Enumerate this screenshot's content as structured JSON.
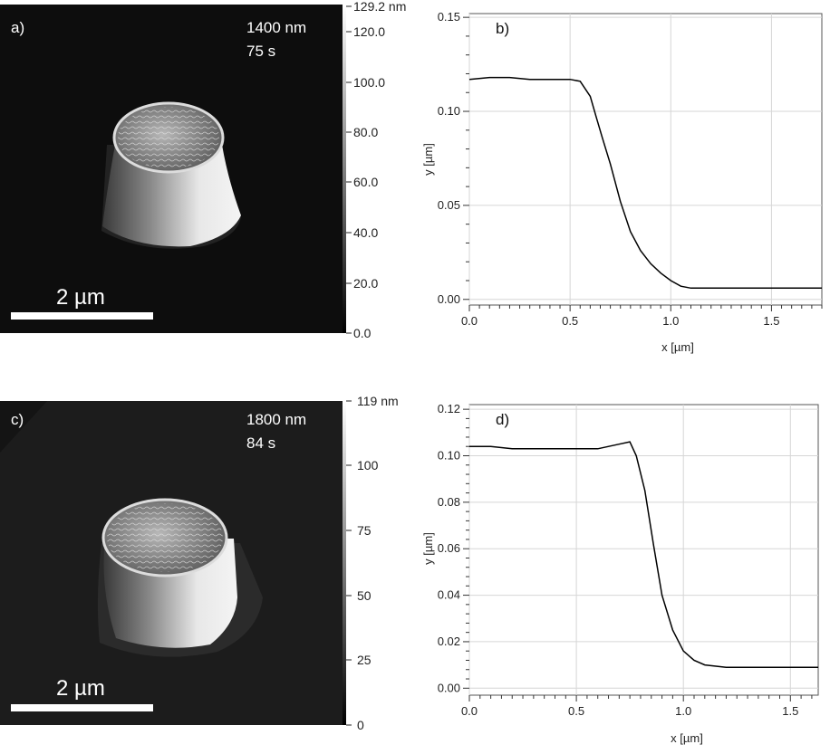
{
  "panels": {
    "a": {
      "label": "a)",
      "info_line1": "1400 nm",
      "info_line2": "75 s",
      "scale_bar": "2 µm",
      "colorbar": {
        "max_label": "129.2 nm",
        "ticks": [
          "120.0",
          "100.0",
          "80.0",
          "60.0",
          "40.0",
          "20.0",
          "0.0"
        ]
      }
    },
    "c": {
      "label": "c)",
      "info_line1": "1800 nm",
      "info_line2": "84 s",
      "scale_bar": "2 µm",
      "colorbar": {
        "max_label": "119 nm",
        "ticks": [
          "100",
          "75",
          "50",
          "25",
          "0"
        ]
      }
    }
  },
  "chart_data": [
    {
      "type": "line",
      "panel_label": "b)",
      "xlabel": "x [µm]",
      "ylabel": "y [µm]",
      "xlim": [
        0,
        1.75
      ],
      "ylim": [
        -0.003,
        0.152
      ],
      "xticks": [
        0.0,
        0.5,
        1.0,
        1.5
      ],
      "xtick_labels": [
        "0.0",
        "0.5",
        "1.0",
        "1.5"
      ],
      "yticks": [
        0.0,
        0.05,
        0.1,
        0.15
      ],
      "ytick_labels": [
        "0.00",
        "0.05",
        "0.10",
        "0.15"
      ],
      "grid": true,
      "series": [
        {
          "x": [
            0.0,
            0.1,
            0.2,
            0.3,
            0.4,
            0.5,
            0.55,
            0.6,
            0.63,
            0.66,
            0.7,
            0.75,
            0.8,
            0.85,
            0.9,
            0.95,
            1.0,
            1.05,
            1.1,
            1.2,
            1.3,
            1.4,
            1.5,
            1.6,
            1.75
          ],
          "y": [
            0.117,
            0.118,
            0.118,
            0.117,
            0.117,
            0.117,
            0.116,
            0.108,
            0.097,
            0.086,
            0.072,
            0.052,
            0.036,
            0.026,
            0.019,
            0.014,
            0.01,
            0.007,
            0.006,
            0.006,
            0.006,
            0.006,
            0.006,
            0.006,
            0.006
          ]
        }
      ]
    },
    {
      "type": "line",
      "panel_label": "d)",
      "xlabel": "x [µm]",
      "ylabel": "y [µm]",
      "xlim": [
        0,
        1.63
      ],
      "ylim": [
        -0.003,
        0.122
      ],
      "xticks": [
        0.0,
        0.5,
        1.0,
        1.5
      ],
      "xtick_labels": [
        "0.0",
        "0.5",
        "1.0",
        "1.5"
      ],
      "yticks": [
        0.0,
        0.02,
        0.04,
        0.06,
        0.08,
        0.1,
        0.12
      ],
      "ytick_labels": [
        "0.00",
        "0.02",
        "0.04",
        "0.06",
        "0.08",
        "0.10",
        "0.12"
      ],
      "grid": true,
      "series": [
        {
          "x": [
            0.0,
            0.1,
            0.2,
            0.3,
            0.4,
            0.5,
            0.6,
            0.7,
            0.75,
            0.78,
            0.82,
            0.86,
            0.9,
            0.95,
            1.0,
            1.05,
            1.1,
            1.2,
            1.3,
            1.4,
            1.5,
            1.63
          ],
          "y": [
            0.104,
            0.104,
            0.103,
            0.103,
            0.103,
            0.103,
            0.103,
            0.105,
            0.106,
            0.1,
            0.085,
            0.062,
            0.04,
            0.025,
            0.016,
            0.012,
            0.01,
            0.009,
            0.009,
            0.009,
            0.009,
            0.009
          ]
        }
      ]
    }
  ]
}
